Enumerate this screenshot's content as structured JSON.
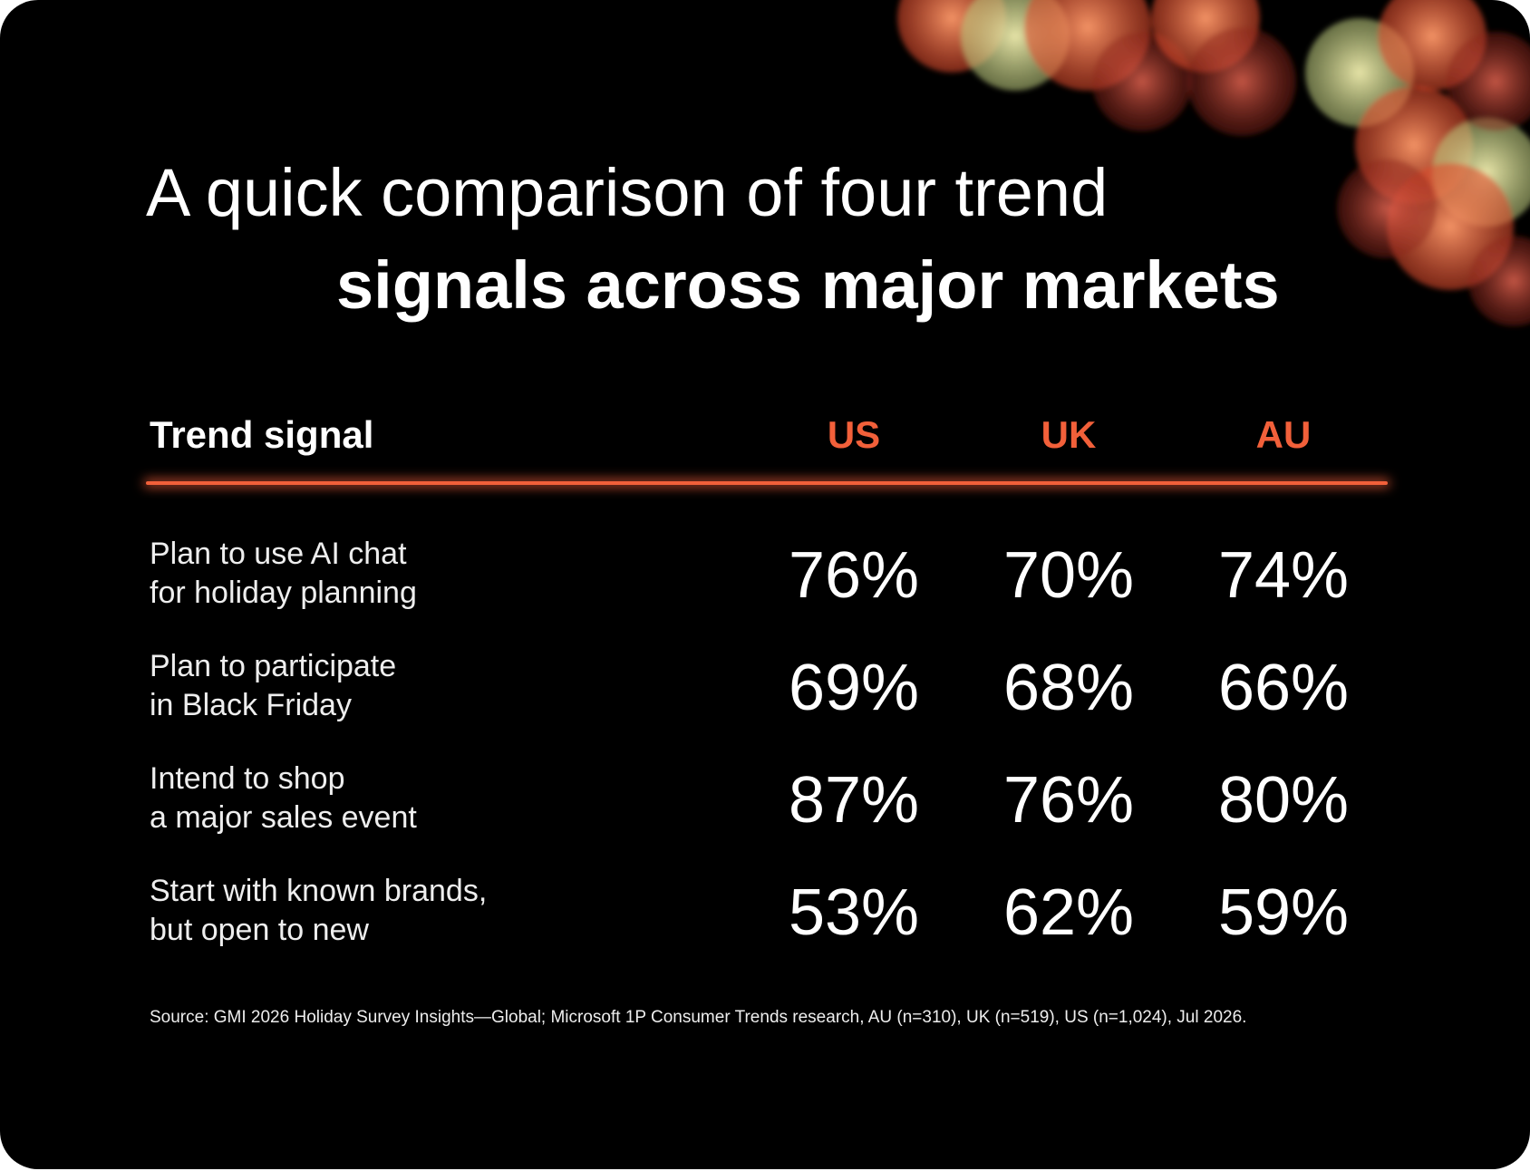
{
  "title": {
    "line1": "A quick comparison of four trend",
    "line2": "signals across major markets"
  },
  "table": {
    "header": [
      "Trend signal",
      "US",
      "UK",
      "AU"
    ],
    "rows": [
      {
        "label": [
          "Plan to use AI chat",
          "for holiday planning"
        ],
        "values": [
          "76%",
          "70%",
          "74%"
        ]
      },
      {
        "label": [
          "Plan to participate",
          "in Black Friday"
        ],
        "values": [
          "69%",
          "68%",
          "66%"
        ]
      },
      {
        "label": [
          "Intend to shop",
          "a major sales event"
        ],
        "values": [
          "87%",
          "76%",
          "80%"
        ]
      },
      {
        "label": [
          "Start with known brands,",
          "but open to new"
        ],
        "values": [
          "53%",
          "62%",
          "59%"
        ]
      }
    ]
  },
  "source": "Source: GMI 2026 Holiday Survey Insights—Global; Microsoft 1P Consumer Trends research, AU (n=310), UK (n=519), US (n=1,024), Jul 2026."
}
